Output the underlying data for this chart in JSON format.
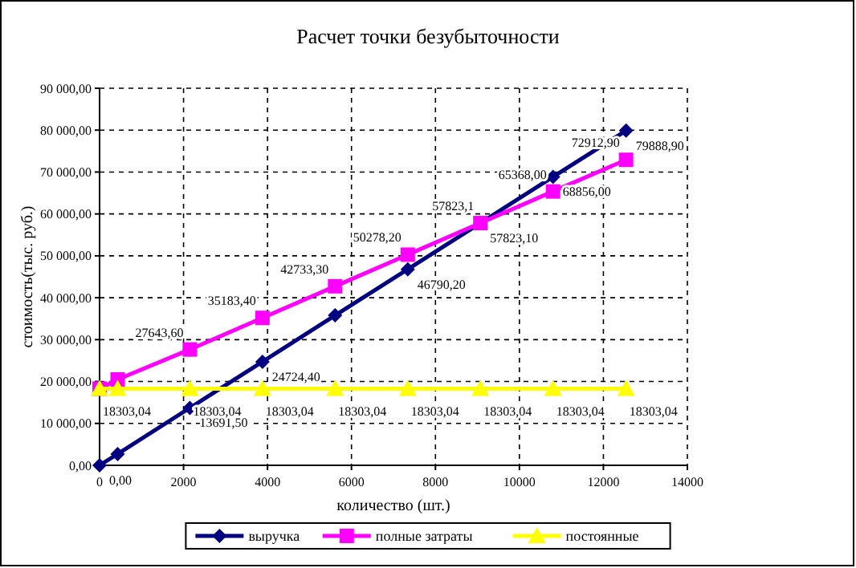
{
  "chart_data": {
    "type": "line",
    "title": "Расчет точки безубыточности",
    "xlabel": "количество (шт.)",
    "ylabel": "стоимость(тыс. руб.)",
    "x": [
      0,
      430,
      2150,
      3880,
      5610,
      7340,
      9070,
      10800,
      12540
    ],
    "xlim": [
      0,
      14000
    ],
    "xticks": [
      0,
      2000,
      4000,
      6000,
      8000,
      10000,
      12000,
      14000
    ],
    "ylim": [
      0,
      90000
    ],
    "yticks": [
      {
        "value": 0,
        "label": "0,00"
      },
      {
        "value": 10000,
        "label": "10 000,00"
      },
      {
        "value": 20000,
        "label": "20 000,00"
      },
      {
        "value": 30000,
        "label": "30 000,00"
      },
      {
        "value": 40000,
        "label": "40 000,00"
      },
      {
        "value": 50000,
        "label": "50 000,00"
      },
      {
        "value": 60000,
        "label": "60 000,00"
      },
      {
        "value": 70000,
        "label": "70 000,00"
      },
      {
        "value": 80000,
        "label": "80 000,00"
      },
      {
        "value": 90000,
        "label": "90 000,00"
      }
    ],
    "grid": true,
    "legend": "bottom",
    "series": [
      {
        "name": "выручка",
        "color": "#000080",
        "marker": "diamond",
        "values": [
          0,
          2700,
          13691.5,
          24724.4,
          35800,
          46790.2,
          57823.1,
          68856,
          79888.9
        ],
        "value_labels": [
          "0,00",
          null,
          "13691,50",
          "24724,40",
          null,
          "46790,20",
          "57823,10",
          "68856,00",
          "79888,90"
        ]
      },
      {
        "name": "полные затраты",
        "color": "#ff00ff",
        "marker": "square",
        "values": [
          18300,
          20500,
          27643.6,
          35183.4,
          42733.3,
          50278.2,
          57823.1,
          65368,
          72912.9
        ],
        "value_labels": [
          null,
          null,
          "27643,60",
          "35183,40",
          "42733,30",
          "50278,20",
          "57823,1",
          "65368,00",
          "72912,90"
        ]
      },
      {
        "name": "постоянные",
        "color": "#ffff00",
        "marker": "triangle",
        "values": [
          18303.04,
          18300,
          18303.04,
          18303.04,
          18303.04,
          18303.04,
          18303.04,
          18303.04,
          18303.04
        ],
        "value_labels": [
          "18303,04",
          null,
          "18303,04",
          "18303,04",
          "18303,04",
          "18303,04",
          "18303,04",
          "18303,04",
          "18303,04"
        ]
      }
    ]
  }
}
